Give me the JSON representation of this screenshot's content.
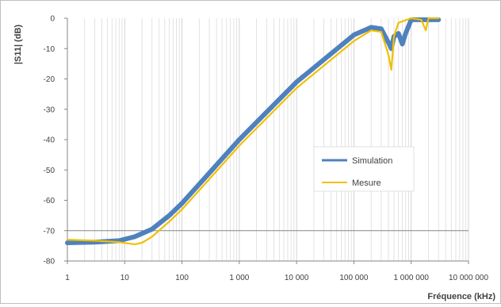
{
  "chart_data": {
    "type": "line",
    "xlabel": "Fréquence (kHz)",
    "ylabel": "|S11| (dB)",
    "x_scale": "log",
    "xlim": [
      1,
      10000000
    ],
    "ylim": [
      -80,
      0
    ],
    "x_ticks": [
      1,
      10,
      100,
      1000,
      10000,
      100000,
      1000000,
      10000000
    ],
    "x_tick_labels": [
      "1",
      "10",
      "100",
      "1 000",
      "10 000",
      "100 000",
      "1 000 000",
      "10 000 000"
    ],
    "y_ticks": [
      0,
      -10,
      -20,
      -30,
      -40,
      -50,
      -60,
      -70,
      -80
    ],
    "y_tick_labels": [
      "0",
      "-10",
      "-20",
      "-30",
      "-40",
      "-50",
      "-60",
      "-70",
      "-80"
    ],
    "grid": "vertical log minor gridlines",
    "reference_line_y": -70,
    "legend_position": "center-right",
    "series": [
      {
        "name": "Simulation",
        "color": "#4F81BD",
        "points": [
          [
            1,
            -74
          ],
          [
            3,
            -73.8
          ],
          [
            8,
            -73.3
          ],
          [
            15,
            -72
          ],
          [
            30,
            -69.5
          ],
          [
            60,
            -65
          ],
          [
            100,
            -61
          ],
          [
            300,
            -51
          ],
          [
            1000,
            -40
          ],
          [
            10000,
            -21
          ],
          [
            100000,
            -5.5
          ],
          [
            200000,
            -3
          ],
          [
            300000,
            -3.5
          ],
          [
            400000,
            -8
          ],
          [
            450000,
            -10
          ],
          [
            500000,
            -6
          ],
          [
            600000,
            -5
          ],
          [
            700000,
            -8.5
          ],
          [
            800000,
            -5
          ],
          [
            1000000,
            -0.5
          ],
          [
            2000000,
            -0.5
          ],
          [
            3000000,
            -0.5
          ]
        ]
      },
      {
        "name": "Mesure",
        "color": "#F0C000",
        "points": [
          [
            1,
            -73
          ],
          [
            3,
            -73.3
          ],
          [
            8,
            -73.8
          ],
          [
            15,
            -74.5
          ],
          [
            20,
            -74
          ],
          [
            30,
            -72
          ],
          [
            60,
            -67
          ],
          [
            100,
            -63
          ],
          [
            300,
            -53
          ],
          [
            1000,
            -42
          ],
          [
            10000,
            -23
          ],
          [
            100000,
            -7.5
          ],
          [
            200000,
            -4
          ],
          [
            300000,
            -4.5
          ],
          [
            400000,
            -12
          ],
          [
            450000,
            -17
          ],
          [
            500000,
            -6
          ],
          [
            600000,
            -1.5
          ],
          [
            1000000,
            0
          ],
          [
            1500000,
            -0.5
          ],
          [
            1800000,
            -4
          ],
          [
            2000000,
            0
          ],
          [
            3000000,
            0
          ]
        ]
      }
    ]
  }
}
